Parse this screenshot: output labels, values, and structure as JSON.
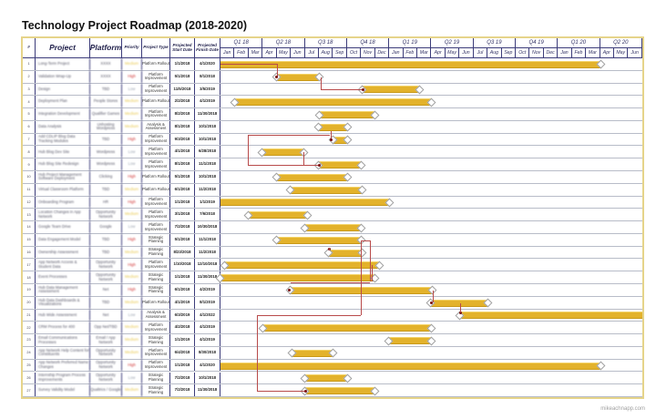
{
  "title": "Technology Project Roadmap (2018-2020)",
  "footer": "mikeachnapp.com",
  "colors": {
    "bar": "#e3b22b",
    "border": "#e6d48a",
    "link": "#b84a4a",
    "high": "#d03030",
    "medium": "#e8c850",
    "low": "#9aa3b0"
  },
  "headers": {
    "num": "#",
    "project": "Project",
    "platform": "Platform",
    "priority": "Priority",
    "project_type": "Project Type",
    "start": "Projected Start Date",
    "finish": "Projected Finish Date"
  },
  "quarters": [
    "Q1 18",
    "Q2 18",
    "Q3 18",
    "Q4 18",
    "Q1 19",
    "Q2 19",
    "Q3 19",
    "Q4 19",
    "Q1 20",
    "Q2 20"
  ],
  "months": [
    "Jan",
    "Feb",
    "Mar",
    "Apr",
    "May",
    "Jun",
    "Jul",
    "Aug",
    "Sep",
    "Oct",
    "Nov",
    "Dec",
    "Jan",
    "Feb",
    "Mar",
    "Apr",
    "May",
    "Jun",
    "Jul",
    "Aug",
    "Sep",
    "Oct",
    "Nov",
    "Dec",
    "Jan",
    "Feb",
    "Mar",
    "Apr",
    "May",
    "Jun"
  ],
  "rows": [
    {
      "num": "1",
      "project": "Long-Term Project",
      "platform": "XXXX",
      "priority": "Medium",
      "type": "Platform Rollout",
      "start": "1/1/2018",
      "finish": "4/1/2020"
    },
    {
      "num": "2",
      "project": "Validation Wrap-Up",
      "platform": "XXXX",
      "priority": "High",
      "type": "Platform Improvement",
      "start": "5/1/2018",
      "finish": "8/1/2018"
    },
    {
      "num": "3",
      "project": "Design",
      "platform": "TBD",
      "priority": "Low",
      "type": "Platform Improvement",
      "start": "11/5/2018",
      "finish": "3/5/2019"
    },
    {
      "num": "4",
      "project": "Deployment Plan",
      "platform": "People Stores",
      "priority": "Medium",
      "type": "Platform Rollout",
      "start": "2/2/2018",
      "finish": "4/1/2019"
    },
    {
      "num": "5",
      "project": "Integration Development",
      "platform": "Qualifier Games",
      "priority": "Medium",
      "type": "Platform Improvement",
      "start": "8/2/2018",
      "finish": "11/30/2018"
    },
    {
      "num": "6",
      "project": "Data Analysis",
      "platform": "Unhosting Wordpress",
      "priority": "Medium",
      "type": "Analysis & Assessment",
      "start": "8/1/2018",
      "finish": "10/1/2018"
    },
    {
      "num": "7",
      "project": "Add CDLIP Blog Data Tracking Modules",
      "platform": "TBD",
      "priority": "High",
      "type": "Platform Improvement",
      "start": "9/3/2018",
      "finish": "10/1/2018"
    },
    {
      "num": "8",
      "project": "Hub Blog Dev Site",
      "platform": "Wordpress",
      "priority": "Low",
      "type": "Platform Improvement",
      "start": "4/1/2018",
      "finish": "6/28/2018"
    },
    {
      "num": "9",
      "project": "Hub Blog Site Redesign",
      "platform": "Wordpress",
      "priority": "Low",
      "type": "Platform Improvement",
      "start": "8/1/2018",
      "finish": "11/1/2018"
    },
    {
      "num": "10",
      "project": "Hub Project Management Software Deployment",
      "platform": "Clicking",
      "priority": "High",
      "type": "Platform Rollout",
      "start": "5/1/2018",
      "finish": "10/1/2018"
    },
    {
      "num": "11",
      "project": "Virtual Classroom Platform",
      "platform": "TBD",
      "priority": "Medium",
      "type": "Platform Rollout",
      "start": "6/1/2018",
      "finish": "11/2/2018"
    },
    {
      "num": "12",
      "project": "Onboarding Program",
      "platform": "HR",
      "priority": "High",
      "type": "Platform Improvement",
      "start": "1/1/2018",
      "finish": "1/1/2019"
    },
    {
      "num": "13",
      "project": "Location Changes in App Network",
      "platform": "Opportunity Network",
      "priority": "Medium",
      "type": "Platform Improvement",
      "start": "3/1/2018",
      "finish": "7/6/2018"
    },
    {
      "num": "14",
      "project": "Google Team Drive",
      "platform": "Google",
      "priority": "Low",
      "type": "Platform Improvement",
      "start": "7/2/2018",
      "finish": "10/30/2018"
    },
    {
      "num": "15",
      "project": "Data Engagement Model",
      "platform": "TBD",
      "priority": "High",
      "type": "Strategic Planning",
      "start": "5/1/2018",
      "finish": "11/1/2018"
    },
    {
      "num": "16",
      "project": "Ownership Assessment",
      "platform": "TBD",
      "priority": "Medium",
      "type": "Strategic Planning",
      "start": "8/23/2018",
      "finish": "11/2/2018"
    },
    {
      "num": "17",
      "project": "App Network Access & Student Data",
      "platform": "Opportunity Network",
      "priority": "High",
      "type": "Platform Improvement",
      "start": "1/10/2018",
      "finish": "12/10/2018"
    },
    {
      "num": "18",
      "project": "Event Processes",
      "platform": "Opportunity Network",
      "priority": "Medium",
      "type": "Strategic Planning",
      "start": "1/1/2018",
      "finish": "11/30/2018"
    },
    {
      "num": "19",
      "project": "Hub Data Management Assessment",
      "platform": "Net",
      "priority": "High",
      "type": "Strategic Planning",
      "start": "6/1/2018",
      "finish": "4/2/2019"
    },
    {
      "num": "20",
      "project": "Hub Data Dashboards & Visualizations",
      "platform": "TBD",
      "priority": "Medium",
      "type": "Platform Rollout",
      "start": "4/1/2019",
      "finish": "8/1/2019"
    },
    {
      "num": "21",
      "project": "Hub Wide Assessment",
      "platform": "Net",
      "priority": "Low",
      "type": "Analysis & Assessment",
      "start": "6/3/2019",
      "finish": "4/1/2022"
    },
    {
      "num": "22",
      "project": "CRM Process for 400",
      "platform": "Opp Net/TBD",
      "priority": "Medium",
      "type": "Platform Improvement",
      "start": "4/2/2018",
      "finish": "4/1/2019"
    },
    {
      "num": "23",
      "project": "Email Communications Processes",
      "platform": "Email / App Network",
      "priority": "Medium",
      "type": "Strategic Planning",
      "start": "1/1/2019",
      "finish": "4/1/2019"
    },
    {
      "num": "24",
      "project": "App Network Help Content for Constituents",
      "platform": "Opportunity Network",
      "priority": "Medium",
      "type": "Platform Improvement",
      "start": "6/4/2018",
      "finish": "8/30/2018"
    },
    {
      "num": "25",
      "project": "App Network Preferred Name Changes",
      "platform": "Opportunity Network",
      "priority": "High",
      "type": "Platform Improvement",
      "start": "1/1/2018",
      "finish": "4/1/2020"
    },
    {
      "num": "26",
      "project": "Internship Program Process Improvements",
      "platform": "Opportunity Network",
      "priority": "Low",
      "type": "Strategic Planning",
      "start": "7/2/2018",
      "finish": "10/1/2018"
    },
    {
      "num": "27",
      "project": "Survey Validity Model",
      "platform": "Qualtrics / Google",
      "priority": "Medium",
      "type": "Strategic Planning",
      "start": "7/2/2018",
      "finish": "11/30/2018"
    }
  ],
  "chart_data": {
    "type": "gantt",
    "title": "Technology Project Roadmap (2018-2020)",
    "x_range": [
      "2018-01",
      "2020-06"
    ],
    "tasks": [
      {
        "row": 1,
        "start": "2018-01-01",
        "end": "2020-04-01"
      },
      {
        "row": 2,
        "start": "2018-05-01",
        "end": "2018-08-01"
      },
      {
        "row": 3,
        "start": "2018-11-05",
        "end": "2019-03-05"
      },
      {
        "row": 4,
        "start": "2018-02-02",
        "end": "2019-04-01"
      },
      {
        "row": 5,
        "start": "2018-08-02",
        "end": "2018-11-30"
      },
      {
        "row": 6,
        "start": "2018-08-01",
        "end": "2018-10-01"
      },
      {
        "row": 7,
        "start": "2018-09-03",
        "end": "2018-10-01"
      },
      {
        "row": 8,
        "start": "2018-04-01",
        "end": "2018-06-28"
      },
      {
        "row": 9,
        "start": "2018-08-01",
        "end": "2018-11-01"
      },
      {
        "row": 10,
        "start": "2018-05-01",
        "end": "2018-10-01"
      },
      {
        "row": 11,
        "start": "2018-06-01",
        "end": "2018-11-02"
      },
      {
        "row": 12,
        "start": "2018-01-01",
        "end": "2019-01-01"
      },
      {
        "row": 13,
        "start": "2018-03-01",
        "end": "2018-07-06"
      },
      {
        "row": 14,
        "start": "2018-07-02",
        "end": "2018-10-30"
      },
      {
        "row": 15,
        "start": "2018-05-01",
        "end": "2018-11-01"
      },
      {
        "row": 16,
        "start": "2018-08-23",
        "end": "2018-11-02"
      },
      {
        "row": 17,
        "start": "2018-01-10",
        "end": "2018-12-10"
      },
      {
        "row": 18,
        "start": "2018-01-01",
        "end": "2018-11-30"
      },
      {
        "row": 19,
        "start": "2018-06-01",
        "end": "2019-04-02"
      },
      {
        "row": 20,
        "start": "2019-04-01",
        "end": "2019-08-01"
      },
      {
        "row": 21,
        "start": "2019-06-03",
        "end": "2022-04-01"
      },
      {
        "row": 22,
        "start": "2018-04-02",
        "end": "2019-04-01"
      },
      {
        "row": 23,
        "start": "2019-01-01",
        "end": "2019-04-01"
      },
      {
        "row": 24,
        "start": "2018-06-04",
        "end": "2018-08-30"
      },
      {
        "row": 25,
        "start": "2018-01-01",
        "end": "2020-04-01"
      },
      {
        "row": 26,
        "start": "2018-07-02",
        "end": "2018-10-01"
      },
      {
        "row": 27,
        "start": "2018-07-02",
        "end": "2018-11-30"
      }
    ]
  }
}
